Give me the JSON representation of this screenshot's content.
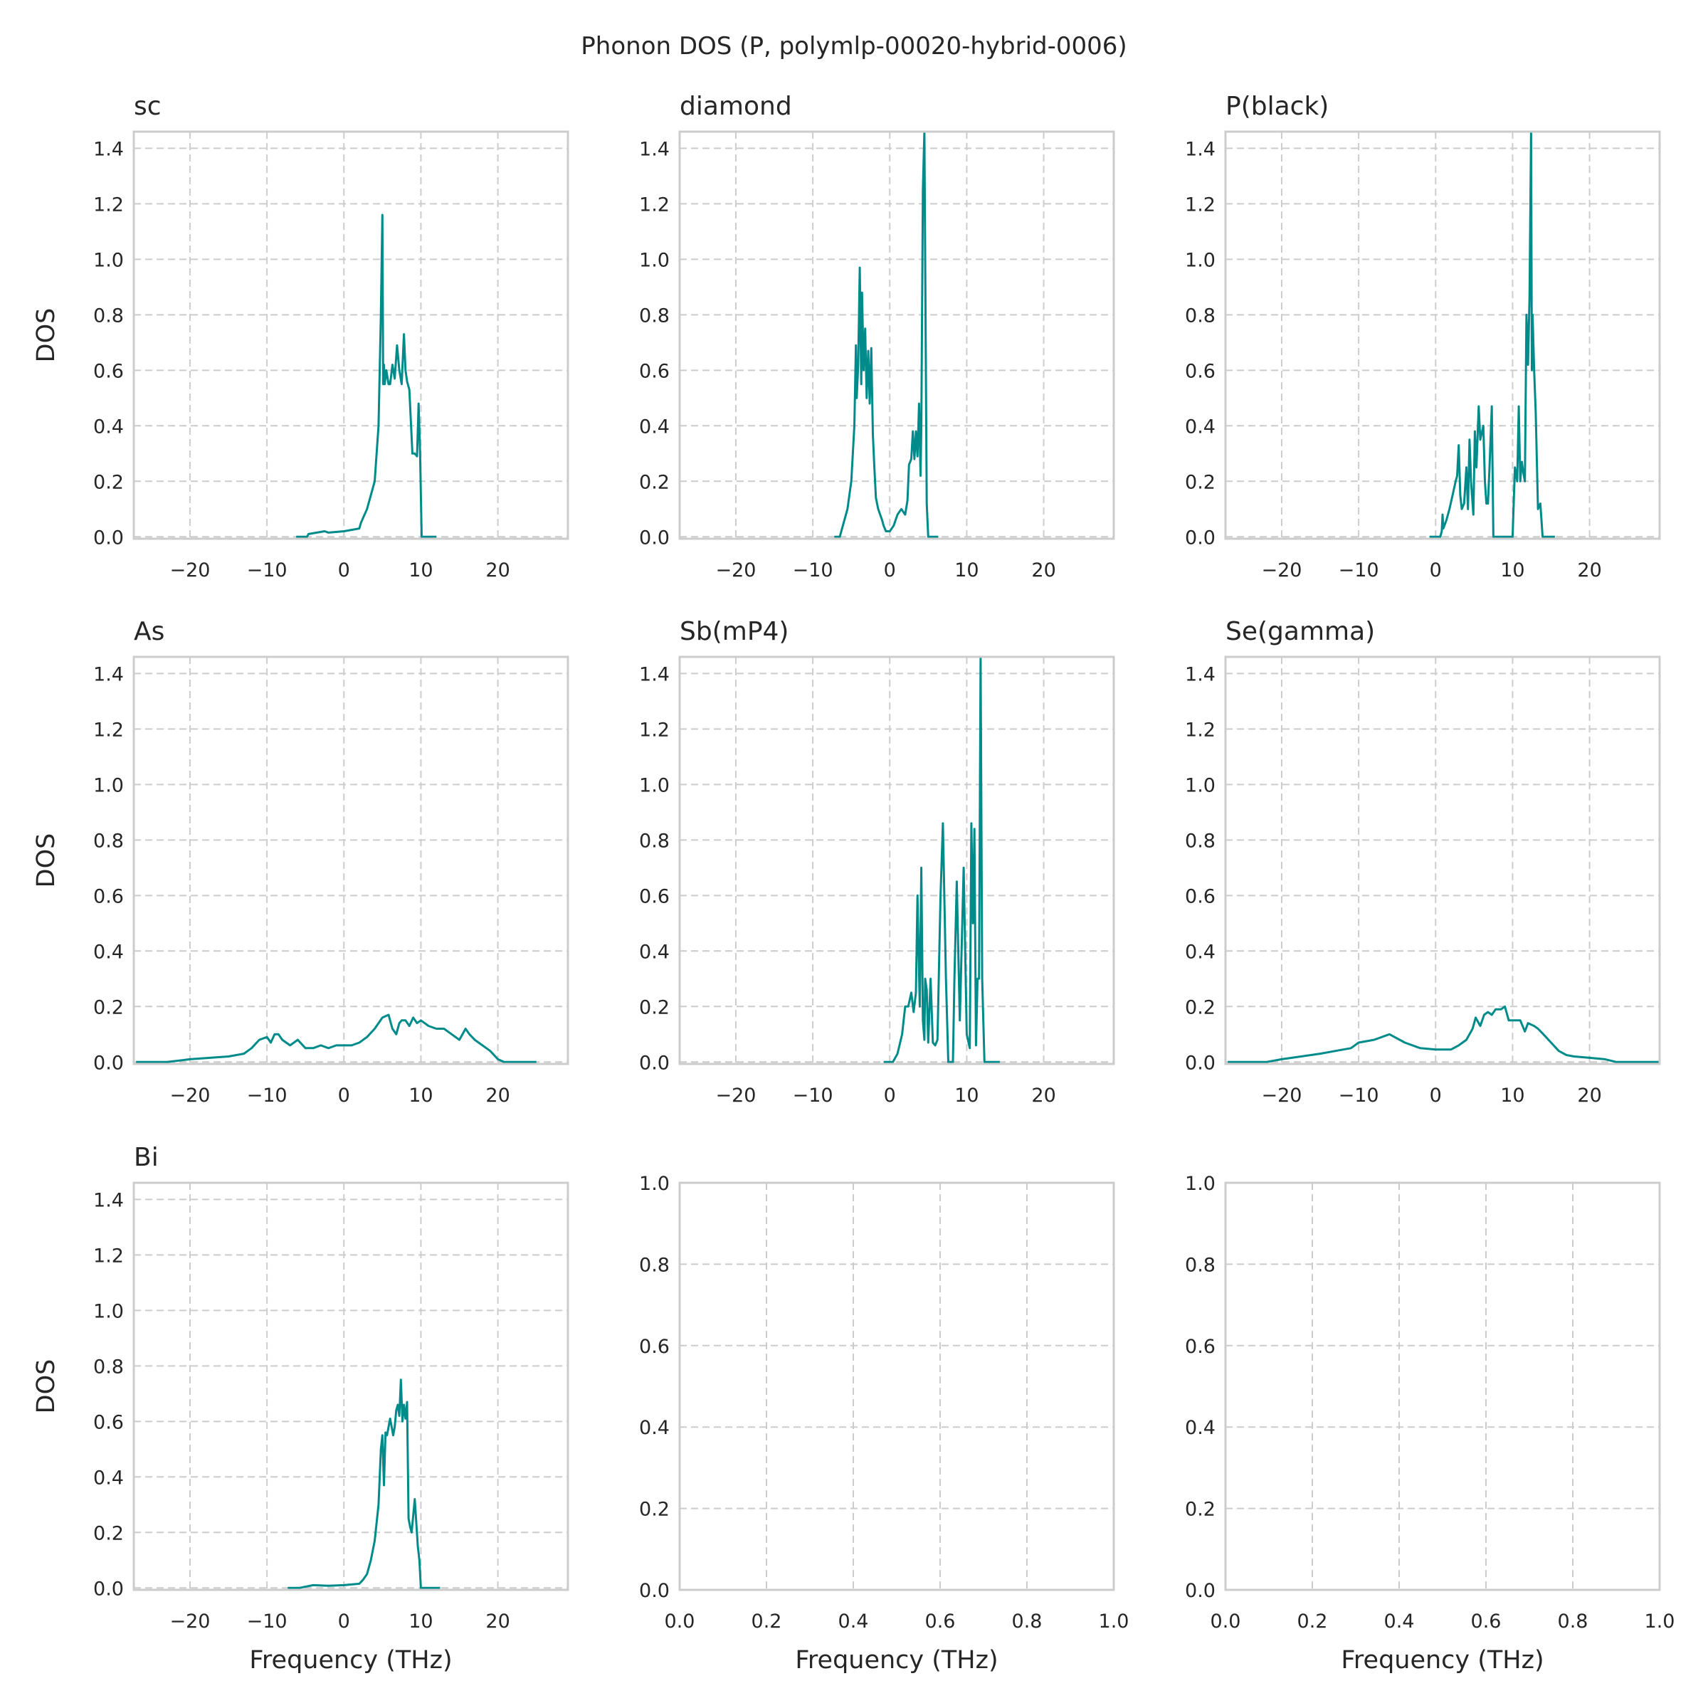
{
  "figure": {
    "title": "Phonon DOS (P, polymlp-00020-hybrid-0006)",
    "line_color": "#008b8b"
  },
  "chart_data": [
    {
      "type": "line",
      "title": "sc",
      "xlabel": "",
      "ylabel": "DOS",
      "xlim": [
        -27.3,
        29.1
      ],
      "ylim": [
        -0.007,
        1.46
      ],
      "grid": true,
      "xticks": [
        -20,
        -10,
        0,
        10,
        20
      ],
      "xticklabels": [
        "−20",
        "−10",
        "0",
        "10",
        "20"
      ],
      "yticks": [
        0,
        0.2,
        0.4,
        0.6,
        0.8,
        1.0,
        1.2,
        1.4
      ],
      "yticklabels": [
        "0.0",
        "0.2",
        "0.4",
        "0.6",
        "0.8",
        "1.0",
        "1.2",
        "1.4"
      ],
      "x": [
        -6.2,
        -4.8,
        -4.6,
        -2.5,
        -2.0,
        0,
        2.0,
        2.2,
        3.0,
        4.0,
        4.5,
        4.8,
        5.0,
        5.1,
        5.2,
        5.3,
        5.5,
        5.8,
        6.0,
        6.3,
        6.6,
        6.9,
        7.2,
        7.5,
        7.8,
        8.0,
        8.2,
        8.5,
        8.9,
        9.2,
        9.5,
        9.7,
        9.9,
        10.1,
        10.4,
        10.6,
        11.0,
        12.0
      ],
      "y": [
        0.0,
        0.0,
        0.01,
        0.02,
        0.015,
        0.02,
        0.03,
        0.05,
        0.1,
        0.2,
        0.4,
        0.8,
        1.16,
        0.55,
        0.62,
        0.55,
        0.6,
        0.55,
        0.55,
        0.62,
        0.57,
        0.69,
        0.6,
        0.55,
        0.73,
        0.6,
        0.56,
        0.53,
        0.3,
        0.3,
        0.29,
        0.48,
        0.3,
        0.0,
        0.0,
        0.0,
        0.0,
        0.0
      ]
    },
    {
      "type": "line",
      "title": "diamond",
      "xlabel": "",
      "ylabel": "",
      "xlim": [
        -27.3,
        29.1
      ],
      "ylim": [
        -0.007,
        1.46
      ],
      "grid": true,
      "xticks": [
        -20,
        -10,
        0,
        10,
        20
      ],
      "xticklabels": [
        "−20",
        "−10",
        "0",
        "10",
        "20"
      ],
      "yticks": [
        0,
        0.2,
        0.4,
        0.6,
        0.8,
        1.0,
        1.2,
        1.4
      ],
      "yticklabels": [
        "0.0",
        "0.2",
        "0.4",
        "0.6",
        "0.8",
        "1.0",
        "1.2",
        "1.4"
      ],
      "x": [
        -7.2,
        -6.5,
        -6.0,
        -5.5,
        -5.0,
        -4.6,
        -4.4,
        -4.3,
        -4.1,
        -3.9,
        -3.7,
        -3.6,
        -3.4,
        -3.2,
        -3.0,
        -2.8,
        -2.6,
        -2.4,
        -2.2,
        -2.0,
        -1.8,
        -1.5,
        -1.0,
        -0.8,
        -0.5,
        0,
        0.5,
        1.0,
        1.5,
        2.0,
        2.3,
        2.5,
        2.8,
        3.0,
        3.2,
        3.4,
        3.6,
        3.8,
        4.0,
        4.1,
        4.3,
        4.5,
        4.8,
        5.0,
        5.5,
        6.3
      ],
      "y": [
        0.0,
        0.0,
        0.05,
        0.1,
        0.2,
        0.4,
        0.69,
        0.5,
        0.62,
        0.97,
        0.55,
        0.88,
        0.6,
        0.75,
        0.5,
        0.67,
        0.48,
        0.68,
        0.37,
        0.25,
        0.14,
        0.1,
        0.06,
        0.04,
        0.02,
        0.02,
        0.04,
        0.08,
        0.1,
        0.08,
        0.13,
        0.26,
        0.28,
        0.38,
        0.28,
        0.38,
        0.29,
        0.48,
        0.22,
        0.4,
        1.25,
        1.46,
        0.12,
        0.0,
        0.0,
        0.0
      ]
    },
    {
      "type": "line",
      "title": "P(black)",
      "xlabel": "",
      "ylabel": "",
      "xlim": [
        -27.3,
        29.1
      ],
      "ylim": [
        -0.007,
        1.46
      ],
      "grid": true,
      "xticks": [
        -20,
        -10,
        0,
        10,
        20
      ],
      "xticklabels": [
        "−20",
        "−10",
        "0",
        "10",
        "20"
      ],
      "yticks": [
        0,
        0.2,
        0.4,
        0.6,
        0.8,
        1.0,
        1.2,
        1.4
      ],
      "yticklabels": [
        "0.0",
        "0.2",
        "0.4",
        "0.6",
        "0.8",
        "1.0",
        "1.2",
        "1.4"
      ],
      "x": [
        -0.8,
        0.6,
        0.8,
        0.9,
        1.0,
        1.4,
        1.8,
        2.2,
        2.6,
        2.8,
        3.0,
        3.2,
        3.4,
        3.7,
        4.0,
        4.2,
        4.4,
        4.6,
        4.9,
        5.1,
        5.3,
        5.6,
        5.8,
        6.2,
        6.4,
        6.6,
        6.8,
        7.0,
        7.3,
        7.5,
        7.7,
        8.0,
        8.3,
        9.2,
        10.0,
        10.3,
        10.6,
        10.8,
        11.0,
        11.2,
        11.4,
        11.6,
        11.8,
        12.0,
        12.2,
        12.4,
        12.5,
        12.6,
        12.8,
        13.0,
        13.3,
        13.6,
        13.9,
        14.2,
        15.5
      ],
      "y": [
        0.0,
        0.0,
        0.02,
        0.08,
        0.03,
        0.06,
        0.1,
        0.15,
        0.2,
        0.22,
        0.33,
        0.15,
        0.1,
        0.12,
        0.25,
        0.1,
        0.35,
        0.2,
        0.08,
        0.38,
        0.25,
        0.47,
        0.35,
        0.4,
        0.2,
        0.12,
        0.12,
        0.25,
        0.47,
        0.0,
        0.0,
        0.0,
        0.0,
        0.0,
        0.0,
        0.25,
        0.2,
        0.47,
        0.2,
        0.27,
        0.23,
        0.2,
        0.8,
        0.62,
        0.86,
        1.46,
        0.6,
        0.8,
        0.6,
        0.45,
        0.1,
        0.12,
        0.0,
        0.0,
        0.0
      ]
    },
    {
      "type": "line",
      "title": "As",
      "xlabel": "",
      "ylabel": "DOS",
      "xlim": [
        -27.3,
        29.1
      ],
      "ylim": [
        -0.007,
        1.46
      ],
      "grid": true,
      "xticks": [
        -20,
        -10,
        0,
        10,
        20
      ],
      "xticklabels": [
        "−20",
        "−10",
        "0",
        "10",
        "20"
      ],
      "yticks": [
        0,
        0.2,
        0.4,
        0.6,
        0.8,
        1.0,
        1.2,
        1.4
      ],
      "yticklabels": [
        "0.0",
        "0.2",
        "0.4",
        "0.6",
        "0.8",
        "1.0",
        "1.2",
        "1.4"
      ],
      "x": [
        -27,
        -23,
        -20,
        -15,
        -13,
        -12,
        -11,
        -10,
        -9.5,
        -9,
        -8.5,
        -8,
        -7,
        -6,
        -5,
        -4,
        -3,
        -2,
        -1,
        0,
        1,
        2,
        3,
        4,
        5,
        5.8,
        6.3,
        6.8,
        7.2,
        7.5,
        8,
        8.5,
        9,
        9.5,
        10,
        11,
        12,
        13,
        14,
        15,
        15.8,
        16.3,
        17,
        18,
        19,
        20,
        20.8,
        25
      ],
      "y": [
        0.0,
        0.0,
        0.01,
        0.02,
        0.03,
        0.05,
        0.08,
        0.09,
        0.07,
        0.1,
        0.1,
        0.08,
        0.06,
        0.08,
        0.05,
        0.05,
        0.06,
        0.05,
        0.06,
        0.06,
        0.06,
        0.07,
        0.09,
        0.12,
        0.16,
        0.17,
        0.12,
        0.1,
        0.14,
        0.15,
        0.15,
        0.13,
        0.16,
        0.14,
        0.15,
        0.13,
        0.12,
        0.12,
        0.1,
        0.08,
        0.12,
        0.1,
        0.08,
        0.06,
        0.04,
        0.01,
        0.0,
        0.0
      ]
    },
    {
      "type": "line",
      "title": "Sb(mP4)",
      "xlabel": "",
      "ylabel": "",
      "xlim": [
        -27.3,
        29.1
      ],
      "ylim": [
        -0.007,
        1.46
      ],
      "grid": true,
      "xticks": [
        -20,
        -10,
        0,
        10,
        20
      ],
      "xticklabels": [
        "−20",
        "−10",
        "0",
        "10",
        "20"
      ],
      "yticks": [
        0,
        0.2,
        0.4,
        0.6,
        0.8,
        1.0,
        1.2,
        1.4
      ],
      "yticklabels": [
        "0.0",
        "0.2",
        "0.4",
        "0.6",
        "0.8",
        "1.0",
        "1.2",
        "1.4"
      ],
      "x": [
        -0.8,
        0.4,
        1.0,
        1.6,
        2.0,
        2.4,
        2.8,
        3.1,
        3.4,
        3.6,
        3.9,
        4.1,
        4.3,
        4.5,
        4.6,
        4.8,
        5.0,
        5.3,
        5.6,
        5.9,
        6.2,
        6.4,
        6.6,
        6.9,
        7.3,
        7.6,
        7.8,
        8.0,
        8.2,
        8.4,
        8.7,
        9.1,
        9.6,
        10.0,
        10.4,
        10.6,
        10.8,
        11.0,
        11.2,
        11.4,
        11.6,
        11.8,
        12.0,
        12.3,
        12.5,
        12.7,
        12.9,
        13.0,
        13.4,
        14.3
      ],
      "y": [
        0.0,
        0.0,
        0.03,
        0.1,
        0.2,
        0.2,
        0.25,
        0.18,
        0.25,
        0.6,
        0.2,
        0.7,
        0.15,
        0.08,
        0.3,
        0.26,
        0.07,
        0.3,
        0.07,
        0.06,
        0.08,
        0.35,
        0.6,
        0.86,
        0.3,
        0.0,
        0.0,
        0.0,
        0.0,
        0.3,
        0.65,
        0.15,
        0.7,
        0.1,
        0.05,
        0.86,
        0.5,
        0.84,
        0.06,
        0.3,
        0.3,
        1.46,
        0.3,
        0.0,
        0.0,
        0.0,
        0.0,
        0.0,
        0.0,
        0.0
      ]
    },
    {
      "type": "line",
      "title": "Se(gamma)",
      "xlabel": "",
      "ylabel": "",
      "xlim": [
        -27.3,
        29.1
      ],
      "ylim": [
        -0.007,
        1.46
      ],
      "grid": true,
      "xticks": [
        -20,
        -10,
        0,
        10,
        20
      ],
      "xticklabels": [
        "−20",
        "−10",
        "0",
        "10",
        "20"
      ],
      "yticks": [
        0,
        0.2,
        0.4,
        0.6,
        0.8,
        1.0,
        1.2,
        1.4
      ],
      "yticklabels": [
        "0.0",
        "0.2",
        "0.4",
        "0.6",
        "0.8",
        "1.0",
        "1.2",
        "1.4"
      ],
      "x": [
        -27,
        -22,
        -20,
        -15,
        -13,
        -11,
        -10,
        -8,
        -6,
        -4,
        -2,
        0,
        2,
        3,
        4,
        4.8,
        5.2,
        5.8,
        6.3,
        6.8,
        7.3,
        7.8,
        8.5,
        9,
        9.5,
        10,
        11,
        11.6,
        12,
        12.8,
        13.3,
        14,
        15,
        16,
        17,
        18,
        20,
        22,
        23.5,
        29
      ],
      "y": [
        0.0,
        0.0,
        0.01,
        0.03,
        0.04,
        0.05,
        0.07,
        0.08,
        0.1,
        0.07,
        0.05,
        0.045,
        0.045,
        0.06,
        0.08,
        0.12,
        0.16,
        0.13,
        0.17,
        0.18,
        0.17,
        0.19,
        0.19,
        0.2,
        0.15,
        0.15,
        0.15,
        0.11,
        0.14,
        0.13,
        0.12,
        0.1,
        0.07,
        0.04,
        0.025,
        0.02,
        0.015,
        0.01,
        0.0,
        0.0
      ]
    },
    {
      "type": "line",
      "title": "Bi",
      "xlabel": "Frequency (THz)",
      "ylabel": "DOS",
      "xlim": [
        -27.3,
        29.1
      ],
      "ylim": [
        -0.007,
        1.46
      ],
      "grid": true,
      "xticks": [
        -20,
        -10,
        0,
        10,
        20
      ],
      "xticklabels": [
        "−20",
        "−10",
        "0",
        "10",
        "20"
      ],
      "yticks": [
        0,
        0.2,
        0.4,
        0.6,
        0.8,
        1.0,
        1.2,
        1.4
      ],
      "yticklabels": [
        "0.0",
        "0.2",
        "0.4",
        "0.6",
        "0.8",
        "1.0",
        "1.2",
        "1.4"
      ],
      "x": [
        -7.3,
        -5.8,
        -4.0,
        -2,
        0,
        2.0,
        2.5,
        3.0,
        3.5,
        4.0,
        4.5,
        4.8,
        5.0,
        5.2,
        5.4,
        5.6,
        6.0,
        6.4,
        6.6,
        6.8,
        7.0,
        7.2,
        7.4,
        7.6,
        7.8,
        8.0,
        8.2,
        8.4,
        8.6,
        8.8,
        9.2,
        9.6,
        9.8,
        10.0,
        10.3,
        10.5,
        12.5
      ],
      "y": [
        0.0,
        0.0,
        0.01,
        0.008,
        0.01,
        0.015,
        0.03,
        0.05,
        0.1,
        0.17,
        0.3,
        0.5,
        0.55,
        0.37,
        0.56,
        0.55,
        0.61,
        0.55,
        0.58,
        0.64,
        0.66,
        0.62,
        0.75,
        0.6,
        0.66,
        0.61,
        0.67,
        0.25,
        0.22,
        0.2,
        0.32,
        0.15,
        0.1,
        0.0,
        0.0,
        0.0,
        0.0
      ]
    },
    {
      "type": "line",
      "title": "",
      "xlabel": "Frequency (THz)",
      "ylabel": "",
      "xlim": [
        0,
        1
      ],
      "ylim": [
        0,
        1
      ],
      "grid": true,
      "xticks": [
        0,
        0.2,
        0.4,
        0.6,
        0.8,
        1.0
      ],
      "xticklabels": [
        "0.0",
        "0.2",
        "0.4",
        "0.6",
        "0.8",
        "1.0"
      ],
      "yticks": [
        0,
        0.2,
        0.4,
        0.6,
        0.8,
        1.0
      ],
      "yticklabels": [
        "0.0",
        "0.2",
        "0.4",
        "0.6",
        "0.8",
        "1.0"
      ],
      "x": [],
      "y": []
    },
    {
      "type": "line",
      "title": "",
      "xlabel": "Frequency (THz)",
      "ylabel": "",
      "xlim": [
        0,
        1
      ],
      "ylim": [
        0,
        1
      ],
      "grid": true,
      "xticks": [
        0,
        0.2,
        0.4,
        0.6,
        0.8,
        1.0
      ],
      "xticklabels": [
        "0.0",
        "0.2",
        "0.4",
        "0.6",
        "0.8",
        "1.0"
      ],
      "yticks": [
        0,
        0.2,
        0.4,
        0.6,
        0.8,
        1.0
      ],
      "yticklabels": [
        "0.0",
        "0.2",
        "0.4",
        "0.6",
        "0.8",
        "1.0"
      ],
      "x": [],
      "y": []
    }
  ]
}
